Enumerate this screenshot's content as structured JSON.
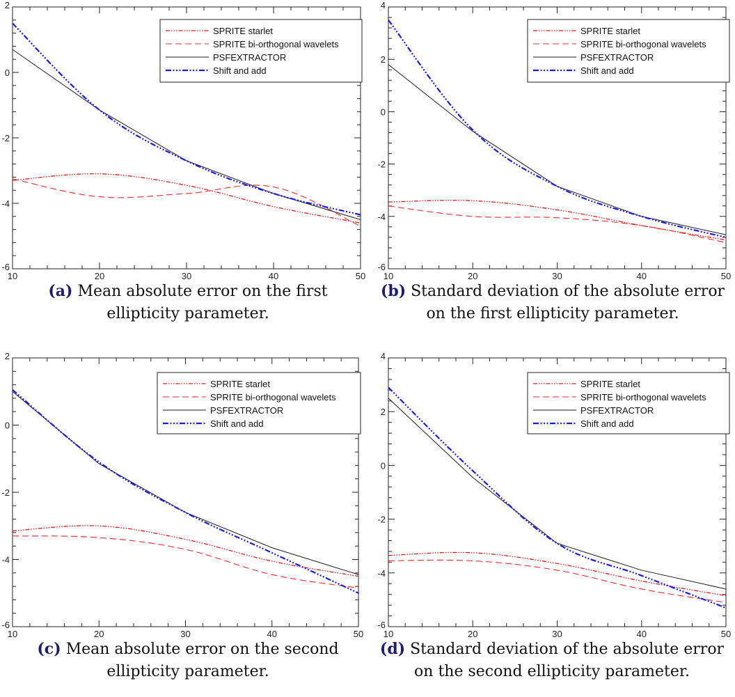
{
  "legend_entries": [
    "SPRITE starlet",
    "SPRITE bi-orthogonal wavelets",
    "PSFEXTRACTOR",
    "Shift and add"
  ],
  "series_colors": {
    "starlet": "#e11919",
    "biortho": "#e62b2b",
    "psfex": "#1a1a1a",
    "shift": "#1a1ae6"
  },
  "captions": [
    {
      "label": "(a)",
      "text": "Mean absolute error on the first ellipticity parameter."
    },
    {
      "label": "(b)",
      "text": "Standard deviation of the absolute error on the first ellipticity parameter."
    },
    {
      "label": "(c)",
      "text": "Mean absolute error on the second ellipticity parameter."
    },
    {
      "label": "(d)",
      "text": "Standard deviation of the absolute error on the second ellipticity parameter."
    }
  ],
  "chart_data": [
    {
      "type": "line",
      "x": [
        10,
        20,
        30,
        40,
        50
      ],
      "xlim": [
        10,
        50
      ],
      "ylim": [
        -6,
        2
      ],
      "xticks": [
        10,
        20,
        30,
        40,
        50
      ],
      "yticks": [
        -6,
        -4,
        -2,
        0,
        2
      ],
      "legend_position": "top-right",
      "series": [
        {
          "name": "SPRITE starlet",
          "values": [
            -3.3,
            -3.1,
            -3.45,
            -4.1,
            -4.6
          ]
        },
        {
          "name": "SPRITE bi-orthogonal wavelets",
          "values": [
            -3.25,
            -3.8,
            -3.7,
            -3.5,
            -4.7
          ]
        },
        {
          "name": "PSFEXTRACTOR",
          "values": [
            0.7,
            -1.15,
            -2.7,
            -3.7,
            -4.5
          ]
        },
        {
          "name": "Shift and add",
          "values": [
            1.5,
            -1.15,
            -2.7,
            -3.7,
            -4.35
          ]
        }
      ]
    },
    {
      "type": "line",
      "x": [
        10,
        20,
        30,
        40,
        50
      ],
      "xlim": [
        10,
        50
      ],
      "ylim": [
        -6,
        4
      ],
      "xticks": [
        10,
        20,
        30,
        40,
        50
      ],
      "yticks": [
        -6,
        -4,
        -2,
        0,
        2,
        4
      ],
      "legend_position": "top-right",
      "series": [
        {
          "name": "SPRITE starlet",
          "values": [
            -3.45,
            -3.4,
            -3.75,
            -4.35,
            -4.9
          ]
        },
        {
          "name": "SPRITE bi-orthogonal wavelets",
          "values": [
            -3.6,
            -4.0,
            -4.05,
            -4.35,
            -5.0
          ]
        },
        {
          "name": "PSFEXTRACTOR",
          "values": [
            1.8,
            -0.75,
            -2.85,
            -4.0,
            -4.7
          ]
        },
        {
          "name": "Shift and add",
          "values": [
            3.5,
            -0.7,
            -2.85,
            -4.0,
            -4.8
          ]
        }
      ]
    },
    {
      "type": "line",
      "x": [
        10,
        20,
        30,
        40,
        50
      ],
      "xlim": [
        10,
        50
      ],
      "ylim": [
        -6,
        2
      ],
      "xticks": [
        10,
        20,
        30,
        40,
        50
      ],
      "yticks": [
        -6,
        -4,
        -2,
        0,
        2
      ],
      "legend_position": "top-right",
      "series": [
        {
          "name": "SPRITE starlet",
          "values": [
            -3.15,
            -3.0,
            -3.4,
            -4.05,
            -4.5
          ]
        },
        {
          "name": "SPRITE bi-orthogonal wavelets",
          "values": [
            -3.3,
            -3.35,
            -3.7,
            -4.45,
            -4.85
          ]
        },
        {
          "name": "PSFEXTRACTOR",
          "values": [
            1.0,
            -1.15,
            -2.6,
            -3.65,
            -4.45
          ]
        },
        {
          "name": "Shift and add",
          "values": [
            1.05,
            -1.1,
            -2.6,
            -3.8,
            -5.0
          ]
        }
      ]
    },
    {
      "type": "line",
      "x": [
        10,
        20,
        30,
        40,
        50
      ],
      "xlim": [
        10,
        50
      ],
      "ylim": [
        -6,
        4
      ],
      "xticks": [
        10,
        20,
        30,
        40,
        50
      ],
      "yticks": [
        -6,
        -4,
        -2,
        0,
        2,
        4
      ],
      "legend_position": "top-right",
      "series": [
        {
          "name": "SPRITE starlet",
          "values": [
            -3.35,
            -3.25,
            -3.65,
            -4.3,
            -4.85
          ]
        },
        {
          "name": "SPRITE bi-orthogonal wavelets",
          "values": [
            -3.55,
            -3.55,
            -3.9,
            -4.6,
            -5.1
          ]
        },
        {
          "name": "PSFEXTRACTOR",
          "values": [
            2.5,
            -0.45,
            -2.9,
            -3.9,
            -4.6
          ]
        },
        {
          "name": "Shift and add",
          "values": [
            2.9,
            -0.2,
            -2.9,
            -4.1,
            -5.3
          ]
        }
      ]
    }
  ]
}
